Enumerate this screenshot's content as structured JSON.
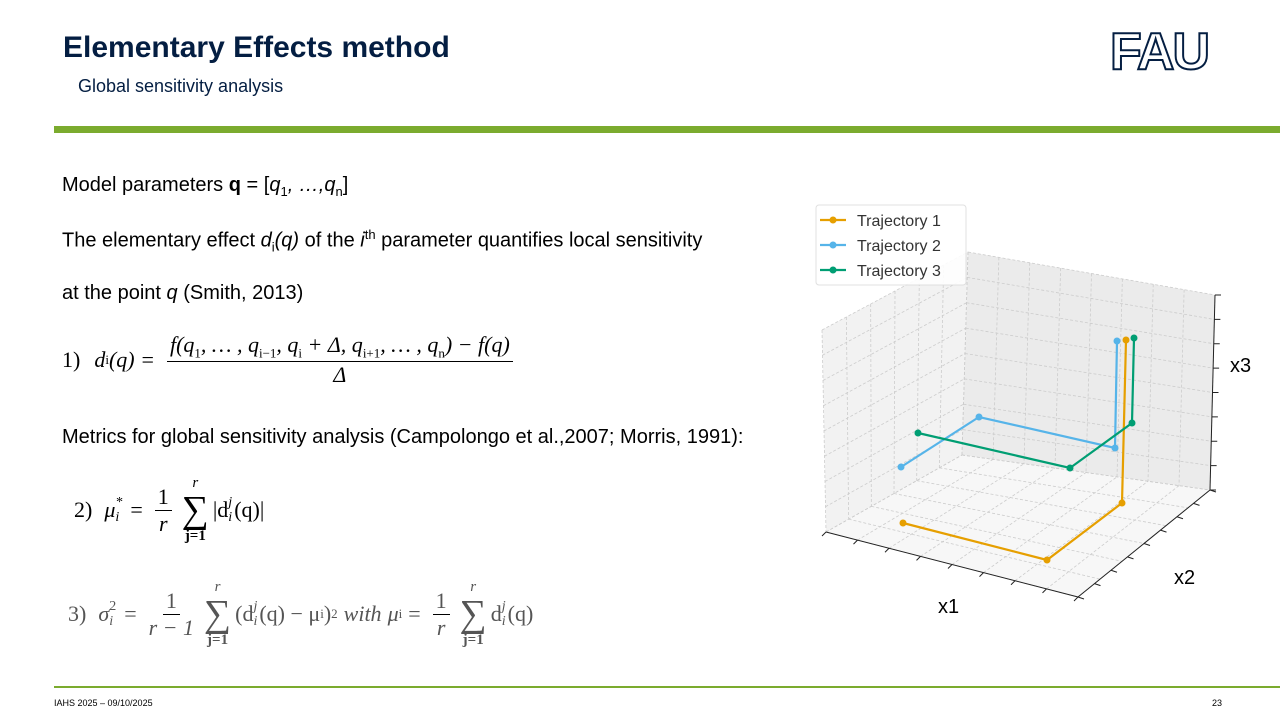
{
  "header": {
    "title": "Elementary Effects method",
    "subtitle": "Global sensitivity analysis",
    "logo": "FAU"
  },
  "text": {
    "line_1": [
      "Model parameters ",
      "q",
      " = [",
      "q",
      "1",
      ", …,",
      "q",
      "n",
      "]"
    ],
    "line_2": [
      "The elementary effect ",
      "d",
      "i",
      "(q)",
      " of the ",
      "i",
      "th",
      " parameter quantifies local sensitivity"
    ],
    "line_3": [
      "at the point ",
      "q",
      " (Smith, 2013)"
    ],
    "line_4": [
      "Metrics for global sensitivity analysis (Campolongo et al.,2007; Morris, 1991):"
    ]
  },
  "formula_1": [
    "1)",
    "d",
    "i",
    "(q) =",
    "f(q",
    "1",
    ", … , q",
    "i−1",
    ", q",
    "i",
    " + Δ, q",
    "i+1",
    ", … , q",
    "n",
    ") − f(q)",
    "Δ"
  ],
  "formula_2": [
    "2)",
    "μ",
    "i",
    "*",
    "=",
    "1",
    "r",
    "r",
    "∑",
    "j=1",
    "|d",
    "j",
    "i",
    "(q)|"
  ],
  "formula_3": [
    "3)",
    "σ",
    "i",
    "2",
    "=",
    "1",
    "r − 1",
    "r",
    "∑",
    "j=1",
    "(d",
    "j",
    "i",
    "(q) − μ",
    "i",
    ")",
    "2",
    "with",
    "μ",
    "i",
    "=",
    "1",
    "r",
    "r",
    "∑",
    "j=1",
    "d",
    "j",
    "i",
    "(q)"
  ],
  "plot": {
    "legend": [
      {
        "name": "Trajectory 1",
        "color": "#e69f00"
      },
      {
        "name": "Trajectory 2",
        "color": "#56b4e9"
      },
      {
        "name": "Trajectory 3",
        "color": "#009e73"
      }
    ],
    "x_label": "x1",
    "y_label": "x2",
    "z_label": "x3"
  },
  "footer": {
    "left": "IAHS 2025 – 09/10/2025",
    "page": "23"
  }
}
